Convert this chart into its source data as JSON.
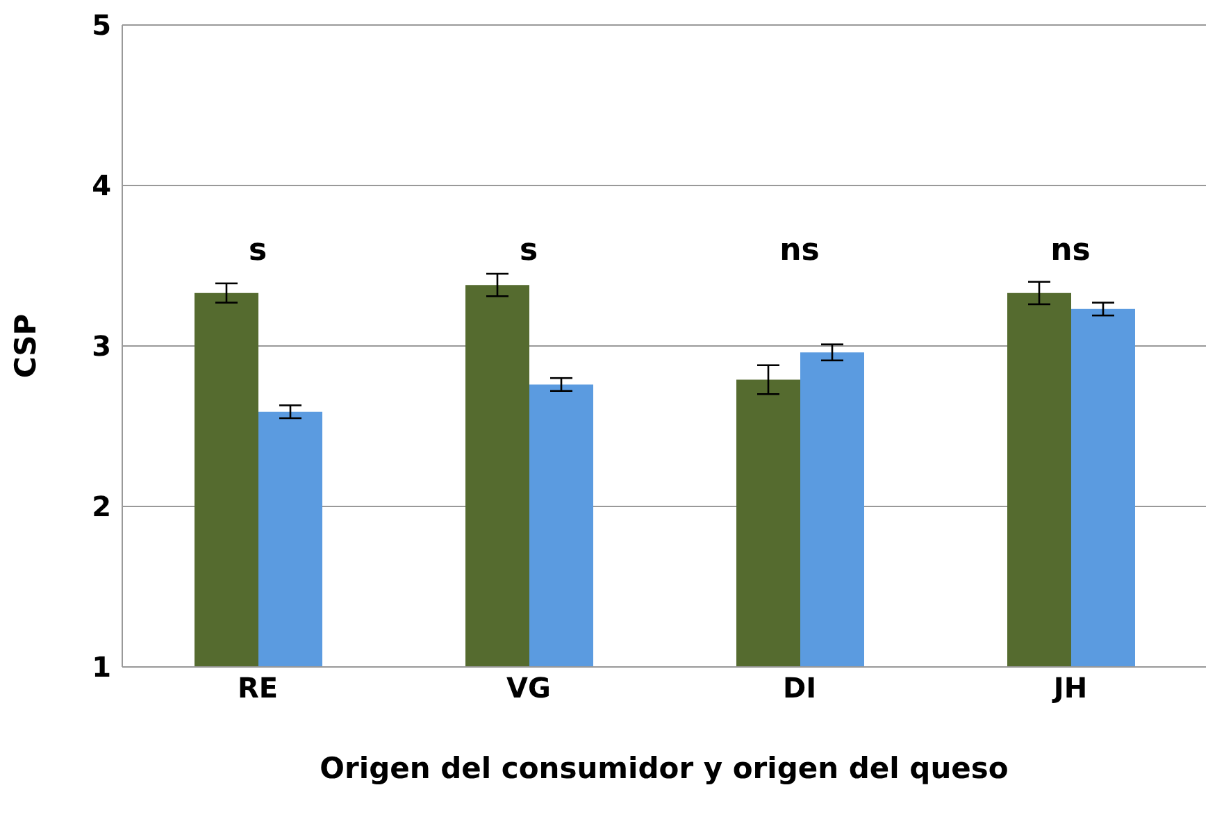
{
  "chart_data": {
    "type": "bar",
    "xlabel": "Origen del consumidor y origen del queso",
    "ylabel": "CSP",
    "categories": [
      "RE",
      "VG",
      "DI",
      "JH"
    ],
    "series": [
      {
        "color": "#556b2f",
        "values": [
          3.33,
          3.38,
          2.79,
          3.33
        ],
        "errors": [
          0.06,
          0.07,
          0.09,
          0.07
        ]
      },
      {
        "color": "#5b9be0",
        "values": [
          2.59,
          2.76,
          2.96,
          3.23
        ],
        "errors": [
          0.04,
          0.04,
          0.05,
          0.04
        ]
      }
    ],
    "ylim": [
      1,
      5
    ],
    "yticks": [
      1,
      2,
      3,
      4,
      5
    ],
    "grid": "y",
    "annotations": [
      "s",
      "s",
      "ns",
      "ns"
    ]
  }
}
